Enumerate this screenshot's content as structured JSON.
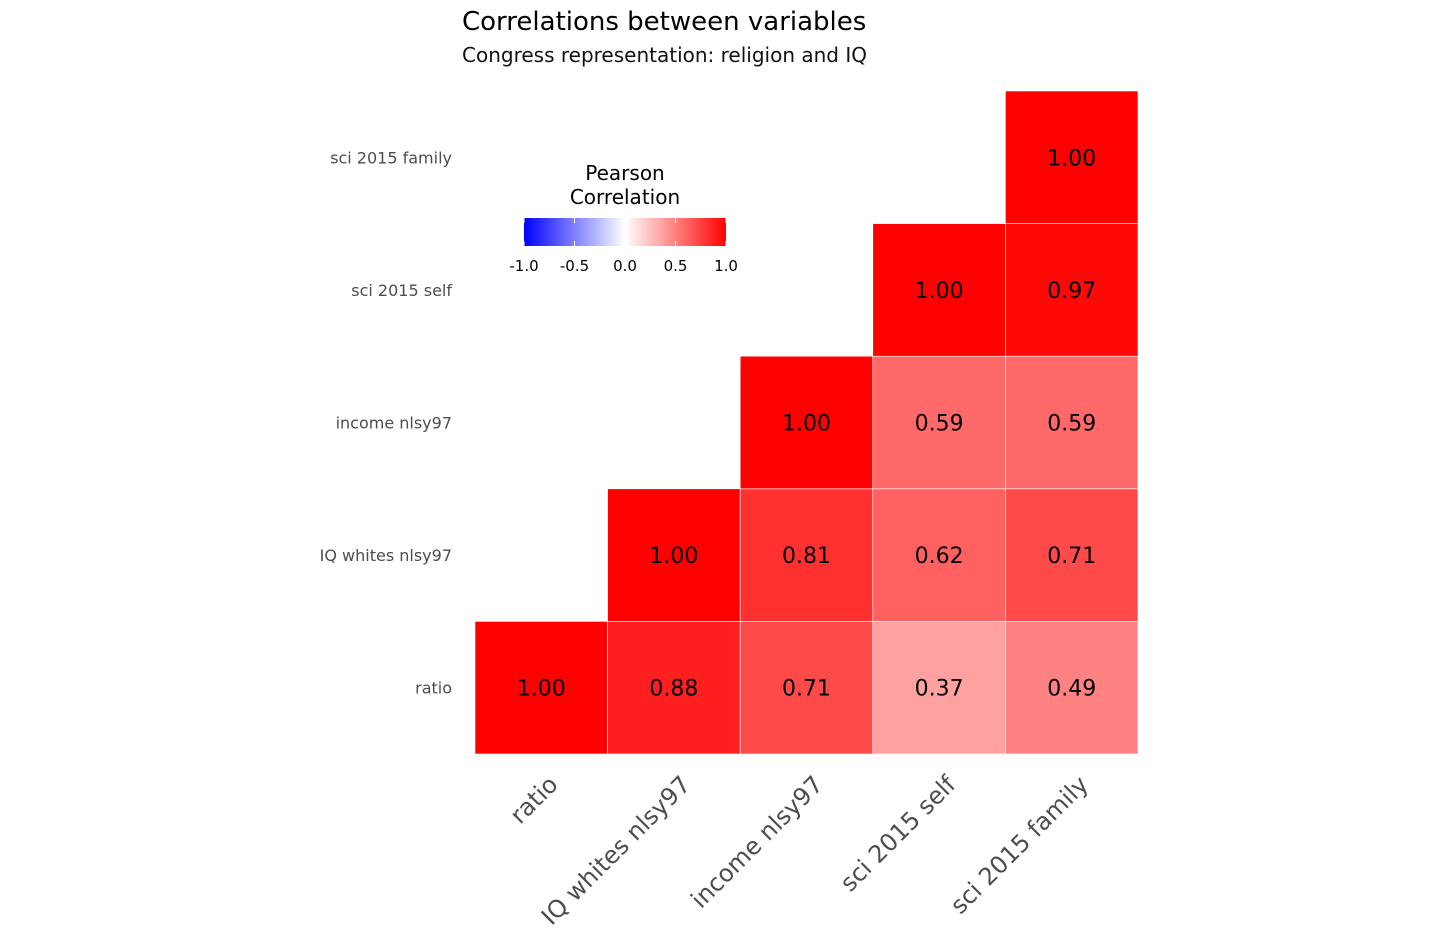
{
  "chart_data": {
    "type": "heatmap",
    "title": "Correlations between variables",
    "subtitle": "Congress representation: religion and IQ",
    "variables": [
      "ratio",
      "IQ whites nlsy97",
      "income nlsy97",
      "sci 2015 self",
      "sci 2015 family"
    ],
    "cells": [
      {
        "x": "ratio",
        "y": "ratio",
        "value": 1.0,
        "label": "1.00"
      },
      {
        "x": "IQ whites nlsy97",
        "y": "ratio",
        "value": 0.88,
        "label": "0.88"
      },
      {
        "x": "income nlsy97",
        "y": "ratio",
        "value": 0.71,
        "label": "0.71"
      },
      {
        "x": "sci 2015 self",
        "y": "ratio",
        "value": 0.37,
        "label": "0.37"
      },
      {
        "x": "sci 2015 family",
        "y": "ratio",
        "value": 0.49,
        "label": "0.49"
      },
      {
        "x": "IQ whites nlsy97",
        "y": "IQ whites nlsy97",
        "value": 1.0,
        "label": "1.00"
      },
      {
        "x": "income nlsy97",
        "y": "IQ whites nlsy97",
        "value": 0.81,
        "label": "0.81"
      },
      {
        "x": "sci 2015 self",
        "y": "IQ whites nlsy97",
        "value": 0.62,
        "label": "0.62"
      },
      {
        "x": "sci 2015 family",
        "y": "IQ whites nlsy97",
        "value": 0.71,
        "label": "0.71"
      },
      {
        "x": "income nlsy97",
        "y": "income nlsy97",
        "value": 1.0,
        "label": "1.00"
      },
      {
        "x": "sci 2015 self",
        "y": "income nlsy97",
        "value": 0.59,
        "label": "0.59"
      },
      {
        "x": "sci 2015 family",
        "y": "income nlsy97",
        "value": 0.59,
        "label": "0.59"
      },
      {
        "x": "sci 2015 self",
        "y": "sci 2015 self",
        "value": 1.0,
        "label": "1.00"
      },
      {
        "x": "sci 2015 family",
        "y": "sci 2015 self",
        "value": 0.97,
        "label": "0.97"
      },
      {
        "x": "sci 2015 family",
        "y": "sci 2015 family",
        "value": 1.0,
        "label": "1.00"
      }
    ],
    "legend": {
      "title_line1": "Pearson",
      "title_line2": "Correlation",
      "limits": [
        -1,
        1
      ],
      "ticks": [
        -1.0,
        -0.5,
        0.0,
        0.5,
        1.0
      ],
      "tick_labels": [
        "-1.0",
        "-0.5",
        "0.0",
        "0.5",
        "1.0"
      ],
      "colors": {
        "low": "#0000ff",
        "mid": "#ffffff",
        "high": "#ff0000"
      }
    }
  }
}
